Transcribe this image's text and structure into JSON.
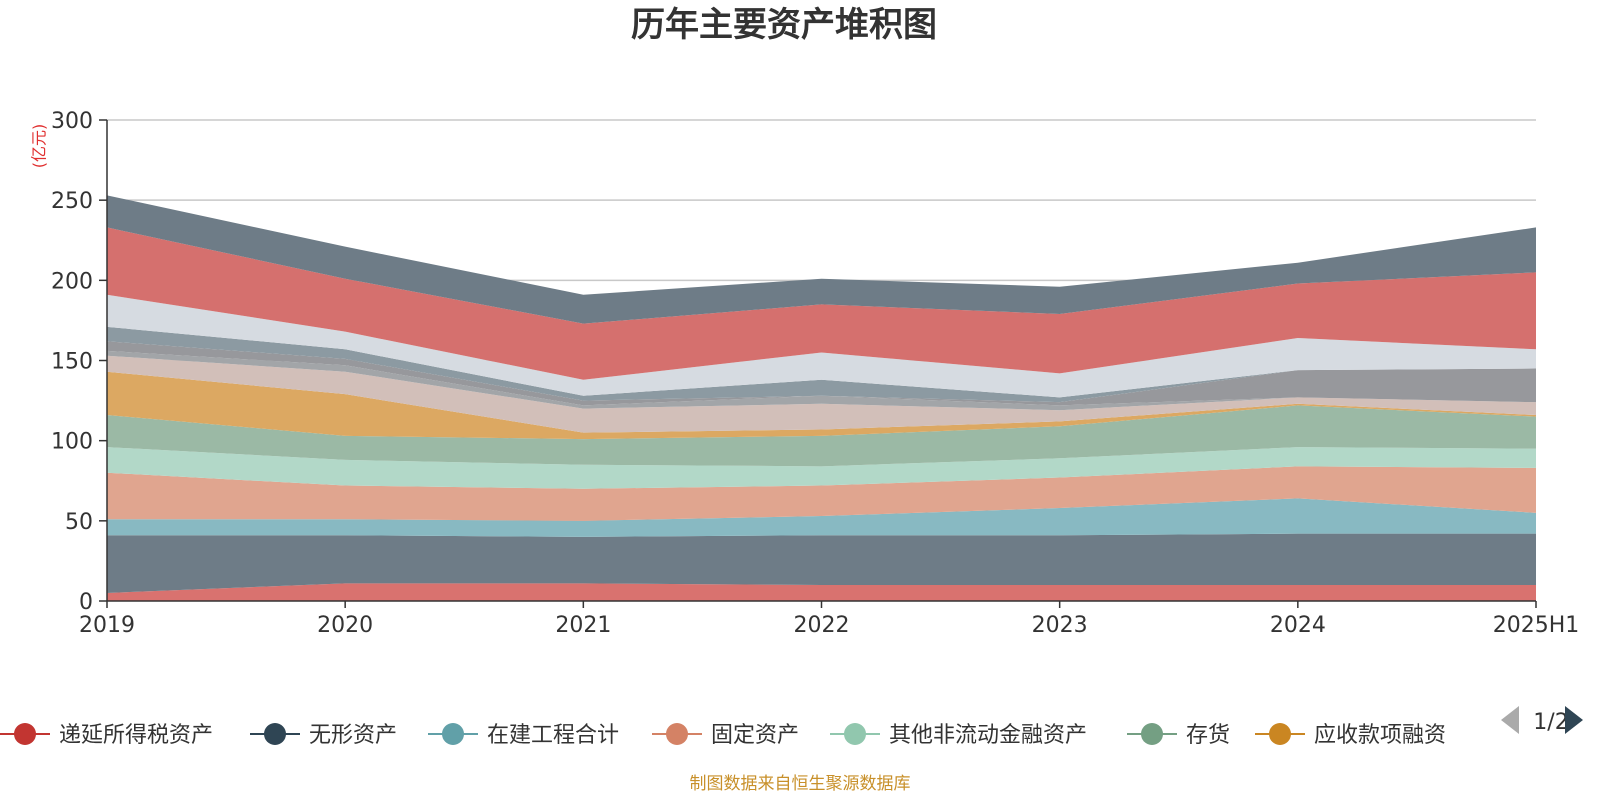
{
  "chart_data": {
    "type": "area",
    "stacked": true,
    "title": "历年主要资产堆积图",
    "unit_label": "(亿元)",
    "categories": [
      "2019",
      "2020",
      "2021",
      "2022",
      "2023",
      "2024",
      "2025H1"
    ],
    "ylim": [
      0,
      300
    ],
    "yticks": [
      0,
      50,
      100,
      150,
      200,
      250,
      300
    ],
    "grid": true,
    "series": [
      {
        "name": "递延所得税资产",
        "color": "#d9726f",
        "values": [
          5,
          11,
          11,
          10,
          10,
          10,
          10
        ]
      },
      {
        "name": "无形资产",
        "color": "#6e7c87",
        "values": [
          36,
          30,
          29,
          31,
          31,
          32,
          32
        ]
      },
      {
        "name": "在建工程合计",
        "color": "#88b9c2",
        "values": [
          10,
          10,
          10,
          12,
          17,
          22,
          13
        ]
      },
      {
        "name": "固定资产",
        "color": "#e0a58f",
        "values": [
          29,
          21,
          20,
          19,
          19,
          20,
          28
        ]
      },
      {
        "name": "其他非流动金融资产",
        "color": "#b2d8c8",
        "values": [
          16,
          16,
          15,
          12,
          12,
          12,
          12
        ]
      },
      {
        "name": "存货",
        "color": "#9bb9a5",
        "values": [
          20,
          15,
          16,
          19,
          20,
          26,
          20
        ]
      },
      {
        "name": "应收款项融资",
        "color": "#dca862",
        "values": [
          27,
          26,
          4,
          4,
          3,
          1,
          1
        ]
      },
      {
        "name": "",
        "color": "#d2bfb9",
        "values": [
          10,
          14,
          15,
          16,
          7,
          4,
          8
        ]
      },
      {
        "name": "",
        "color": "#a2a5a8",
        "values": [
          3,
          4,
          2,
          5,
          3,
          0,
          0
        ]
      },
      {
        "name": "",
        "color": "#97989c",
        "values": [
          6,
          4,
          3,
          0,
          2,
          17,
          21
        ]
      },
      {
        "name": "",
        "color": "#8c9aa2",
        "values": [
          9,
          6,
          3,
          10,
          3,
          0,
          0
        ]
      },
      {
        "name": "",
        "color": "#d6dbe1",
        "values": [
          20,
          11,
          10,
          17,
          15,
          20,
          12
        ]
      },
      {
        "name": "",
        "color": "#d5706e",
        "values": [
          42,
          33,
          35,
          30,
          37,
          34,
          48
        ]
      },
      {
        "name": "",
        "color": "#6e7c87",
        "values": [
          20,
          20,
          18,
          16,
          17,
          13,
          28
        ]
      }
    ],
    "legend": {
      "position": "bottom",
      "items": [
        "递延所得税资产",
        "无形资产",
        "在建工程合计",
        "固定资产",
        "其他非流动金融资产",
        "存货",
        "应收款项融资"
      ],
      "marker_colors": [
        "#c23531",
        "#2f4554",
        "#61a0a8",
        "#d48265",
        "#91c7ae",
        "#749f83",
        "#ca8622"
      ],
      "page": "1/2"
    },
    "source": "制图数据来自恒生聚源数据库"
  }
}
